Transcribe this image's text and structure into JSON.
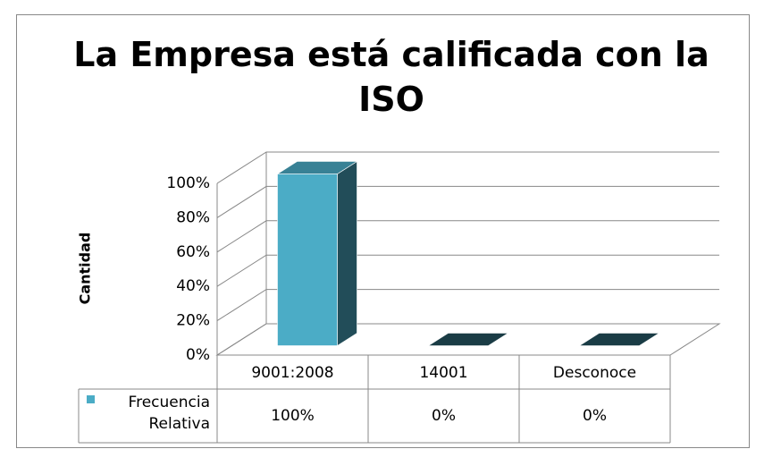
{
  "chart_data": {
    "type": "bar3d",
    "title": "La Empresa está calificada con la ISO",
    "y_label": "Cantidad",
    "categories": [
      "9001:2008",
      "14001",
      "Desconoce"
    ],
    "series": [
      {
        "name": "Frecuencia Relativa",
        "color": "#4bacc6",
        "values": [
          100,
          0,
          0
        ],
        "value_labels": [
          "100%",
          "0%",
          "0%"
        ]
      }
    ],
    "ylim": [
      0,
      100
    ],
    "yticks": [
      {
        "value": 0,
        "label": "0%"
      },
      {
        "value": 20,
        "label": "20%"
      },
      {
        "value": 40,
        "label": "40%"
      },
      {
        "value": 60,
        "label": "60%"
      },
      {
        "value": 80,
        "label": "80%"
      },
      {
        "value": 100,
        "label": "100%"
      }
    ],
    "grid": true,
    "legend": "table"
  }
}
